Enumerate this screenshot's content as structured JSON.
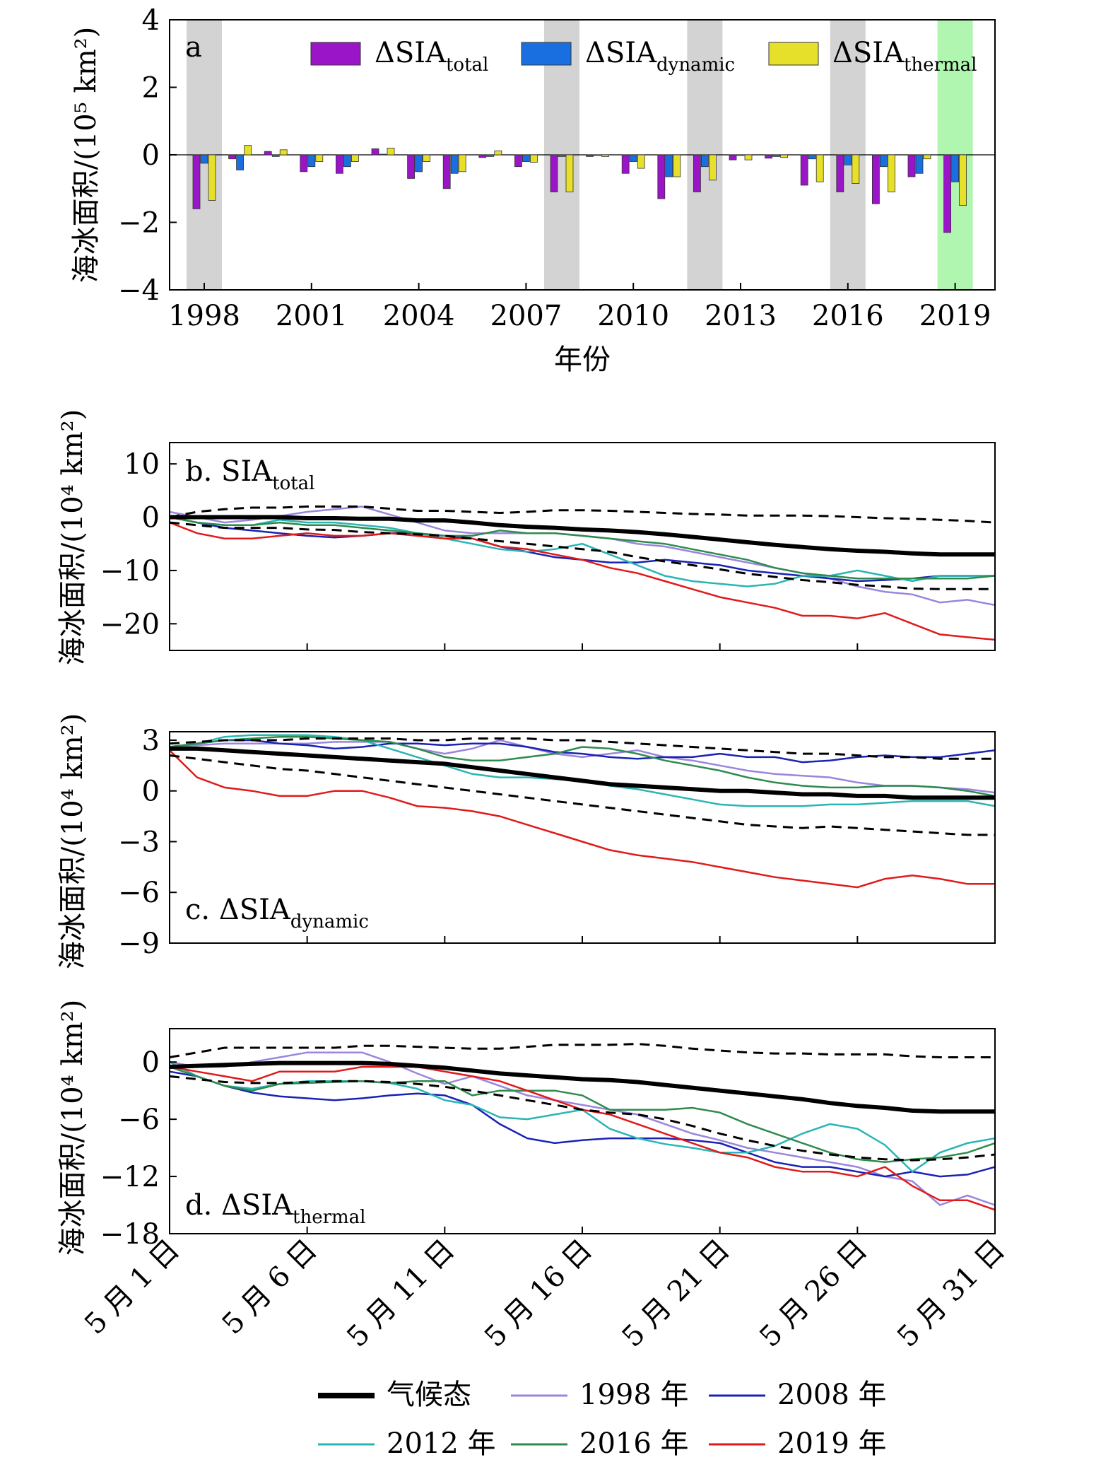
{
  "chart_data": [
    {
      "panel": "a",
      "type": "bar",
      "panel_label": "a",
      "ylabel": "海冰面积/(10⁵ km²)",
      "xlabel": "年份",
      "ylim": [
        -4,
        4
      ],
      "yticks": [
        "−4",
        "−2",
        "0",
        "2",
        "4"
      ],
      "x": [
        1998,
        1999,
        2000,
        2001,
        2002,
        2003,
        2004,
        2005,
        2006,
        2007,
        2008,
        2009,
        2010,
        2011,
        2012,
        2013,
        2014,
        2015,
        2016,
        2017,
        2018,
        2019
      ],
      "xticks": [
        "1998",
        "2001",
        "2004",
        "2007",
        "2010",
        "2013",
        "2016",
        "2019"
      ],
      "highlight_years": [
        1998,
        2008,
        2012,
        2016
      ],
      "highlight_color": "#d3d3d3",
      "special_year": 2019,
      "special_color": "#b0f5b0",
      "series": [
        {
          "name": "ΔSIA",
          "sub": "total",
          "color": "#9a14c8",
          "values": [
            -1.6,
            -0.12,
            0.1,
            -0.5,
            -0.55,
            0.18,
            -0.7,
            -1.0,
            -0.08,
            -0.35,
            -1.1,
            -0.05,
            -0.55,
            -1.3,
            -1.1,
            -0.15,
            -0.1,
            -0.9,
            -1.1,
            -1.45,
            -0.65,
            -2.3
          ]
        },
        {
          "name": "ΔSIA",
          "sub": "dynamic",
          "color": "#1a6fe0",
          "values": [
            -0.25,
            -0.45,
            -0.05,
            -0.35,
            -0.35,
            0.02,
            -0.5,
            -0.55,
            -0.05,
            -0.2,
            -0.05,
            -0.02,
            -0.2,
            -0.65,
            -0.35,
            -0.02,
            -0.05,
            -0.12,
            -0.3,
            -0.35,
            -0.55,
            -0.8
          ]
        },
        {
          "name": "ΔSIA",
          "sub": "thermal",
          "color": "#e6e02a",
          "values": [
            -1.35,
            0.28,
            0.15,
            -0.2,
            -0.2,
            0.2,
            -0.2,
            -0.5,
            0.12,
            -0.22,
            -1.1,
            -0.05,
            -0.4,
            -0.65,
            -0.75,
            -0.15,
            -0.08,
            -0.8,
            -0.85,
            -1.1,
            -0.12,
            -1.5
          ]
        }
      ]
    },
    {
      "panel": "b",
      "type": "line",
      "panel_label": "b. SIA",
      "panel_sub": "total",
      "ylabel": "海冰面积/(10⁴ km²)",
      "ylim": [
        -25,
        14
      ],
      "yticks": [
        {
          "v": 10,
          "t": "10"
        },
        {
          "v": 0,
          "t": "0"
        },
        {
          "v": -10,
          "t": "−10"
        },
        {
          "v": -20,
          "t": "−20"
        }
      ],
      "series": {
        "clim": [
          0,
          0,
          0,
          0,
          0,
          -0.2,
          -0.2,
          -0.3,
          -0.3,
          -0.6,
          -0.6,
          -1,
          -1.5,
          -1.8,
          -2,
          -2.3,
          -2.5,
          -2.8,
          -3.2,
          -3.7,
          -4.2,
          -4.7,
          -5.2,
          -5.6,
          -6,
          -6.3,
          -6.5,
          -6.8,
          -7,
          -7,
          -7
        ],
        "upper": [
          0,
          1,
          1.5,
          1.8,
          1.8,
          2,
          2,
          2,
          1.6,
          1.2,
          1.2,
          1,
          0.8,
          1,
          1.3,
          1.3,
          1.2,
          1,
          0.8,
          0.6,
          0.5,
          0.3,
          0.3,
          0.3,
          0.2,
          0,
          -0.2,
          -0.3,
          -0.5,
          -0.7,
          -1
        ],
        "lower": [
          -1,
          -1.5,
          -2,
          -2,
          -2,
          -2.3,
          -2.4,
          -2.8,
          -3,
          -3.2,
          -3.5,
          -4,
          -4.5,
          -5,
          -5.5,
          -6,
          -6.5,
          -7.5,
          -8.3,
          -9,
          -9.8,
          -10.6,
          -11.2,
          -11.8,
          -12.2,
          -12.7,
          -13,
          -13.4,
          -13.5,
          -13.5,
          -13.5
        ],
        "y1998": [
          1,
          0,
          -1,
          -0.5,
          0.2,
          1,
          1.5,
          2,
          0.5,
          -1,
          -2.5,
          -3,
          -3,
          -3,
          -3,
          -3.5,
          -4,
          -5,
          -5.5,
          -6.5,
          -7.5,
          -8.5,
          -9.5,
          -10.5,
          -11.5,
          -13,
          -14,
          -14.5,
          -16,
          -15.5,
          -16.5
        ],
        "y2008": [
          0,
          -1,
          -2,
          -2.5,
          -3,
          -3.5,
          -3.8,
          -3.5,
          -3,
          -3,
          -3.5,
          -4,
          -5.5,
          -6.5,
          -7.5,
          -8,
          -8.5,
          -8.5,
          -8,
          -8.5,
          -9,
          -10,
          -10.5,
          -11,
          -11.5,
          -12,
          -11.8,
          -11.5,
          -11,
          -11,
          -11
        ],
        "y2012": [
          0,
          -1,
          -1.5,
          -1.5,
          -0.5,
          -1,
          -1,
          -1.5,
          -2,
          -3,
          -4,
          -5,
          -6,
          -6.5,
          -6,
          -5,
          -7,
          -9,
          -11,
          -12,
          -12.5,
          -13,
          -12.5,
          -11,
          -11,
          -10,
          -11,
          -12,
          -11,
          -11,
          -11
        ],
        "y2016": [
          0,
          -1,
          -1.5,
          -1.5,
          -1,
          -1.5,
          -1.5,
          -2,
          -2.5,
          -3,
          -3.5,
          -3.5,
          -2.5,
          -3,
          -3,
          -3.5,
          -4,
          -4.5,
          -5,
          -6,
          -7,
          -8,
          -9.5,
          -10.5,
          -11,
          -11.5,
          -11.5,
          -11.5,
          -11.5,
          -11.5,
          -11
        ],
        "y2019": [
          -1,
          -3,
          -4,
          -4,
          -3.5,
          -3,
          -3.5,
          -3.5,
          -3,
          -3.5,
          -4,
          -4,
          -5.5,
          -6,
          -7,
          -8,
          -9.5,
          -10.5,
          -12,
          -13.5,
          -15,
          -16,
          -17,
          -18.5,
          -18.5,
          -19,
          -18,
          -20,
          -22,
          -22.5,
          -23
        ]
      }
    },
    {
      "panel": "c",
      "type": "line",
      "panel_label": "c. ΔSIA",
      "panel_sub": "dynamic",
      "ylabel": "海冰面积/(10⁴ km²)",
      "ylim": [
        -9,
        3.5
      ],
      "yticks": [
        {
          "v": 3,
          "t": "3"
        },
        {
          "v": 0,
          "t": "0"
        },
        {
          "v": -3,
          "t": "−3"
        },
        {
          "v": -6,
          "t": "−6"
        },
        {
          "v": -9,
          "t": "−9"
        }
      ],
      "series": {
        "clim": [
          2.5,
          2.5,
          2.4,
          2.3,
          2.2,
          2.1,
          2,
          1.9,
          1.8,
          1.7,
          1.6,
          1.4,
          1.2,
          1,
          0.8,
          0.6,
          0.4,
          0.3,
          0.2,
          0.1,
          0,
          0,
          -0.1,
          -0.2,
          -0.2,
          -0.3,
          -0.3,
          -0.4,
          -0.4,
          -0.4,
          -0.4
        ],
        "upper": [
          2.8,
          2.9,
          3,
          3,
          3,
          3.1,
          3.1,
          3.1,
          3.1,
          3,
          3,
          3.1,
          3.1,
          3.1,
          3,
          3,
          2.9,
          2.8,
          2.7,
          2.6,
          2.5,
          2.4,
          2.3,
          2.2,
          2.2,
          2.1,
          2,
          2,
          1.9,
          1.9,
          1.9
        ],
        "lower": [
          2.1,
          1.9,
          1.7,
          1.5,
          1.3,
          1.2,
          1,
          0.8,
          0.6,
          0.4,
          0.2,
          0,
          -0.2,
          -0.4,
          -0.6,
          -0.8,
          -1,
          -1.2,
          -1.4,
          -1.6,
          -1.8,
          -2,
          -2.1,
          -2.2,
          -2.1,
          -2.2,
          -2.3,
          -2.4,
          -2.5,
          -2.6,
          -2.6
        ],
        "y1998": [
          2.6,
          2.7,
          2.8,
          2.8,
          2.8,
          2.8,
          2.9,
          2.9,
          2.9,
          2.5,
          2.2,
          2.5,
          3,
          2.6,
          2.2,
          2,
          2.2,
          2.4,
          2,
          1.8,
          1.5,
          1.2,
          1,
          0.9,
          0.8,
          0.5,
          0.3,
          0.3,
          0.2,
          0.1,
          -0.1
        ],
        "y2008": [
          2.6,
          2.8,
          3,
          3,
          2.8,
          2.7,
          2.5,
          2.6,
          2.8,
          2.8,
          2.7,
          2.8,
          2.8,
          2.6,
          2.3,
          2.2,
          2,
          1.9,
          2,
          2,
          2.2,
          2,
          2,
          1.7,
          1.8,
          2,
          2.1,
          2,
          2,
          2.2,
          2.4
        ],
        "y2012": [
          2.5,
          2.8,
          3.2,
          3.3,
          3.3,
          3.3,
          3.2,
          3,
          2.5,
          2,
          1.5,
          1,
          0.8,
          0.8,
          0.7,
          0.6,
          0.3,
          0.1,
          -0.2,
          -0.5,
          -0.8,
          -0.9,
          -0.9,
          -0.9,
          -0.8,
          -0.8,
          -0.7,
          -0.6,
          -0.6,
          -0.6,
          -0.9
        ],
        "y2016": [
          2.6,
          2.8,
          3,
          3.1,
          3.2,
          3.2,
          3.1,
          3,
          2.9,
          2.5,
          2,
          1.8,
          1.8,
          2,
          2.2,
          2.6,
          2.5,
          2.2,
          1.8,
          1.5,
          1.2,
          0.8,
          0.5,
          0.3,
          0.2,
          0.2,
          0.3,
          0.3,
          0.2,
          0,
          -0.3
        ],
        "y2019": [
          2.4,
          0.8,
          0.2,
          0,
          -0.3,
          -0.3,
          0,
          0,
          -0.4,
          -0.9,
          -1,
          -1.2,
          -1.5,
          -2,
          -2.5,
          -3,
          -3.5,
          -3.8,
          -4,
          -4.2,
          -4.5,
          -4.8,
          -5.1,
          -5.3,
          -5.5,
          -5.7,
          -5.2,
          -5,
          -5.2,
          -5.5,
          -5.5
        ]
      }
    },
    {
      "panel": "d",
      "type": "line",
      "panel_label": "d. ΔSIA",
      "panel_sub": "thermal",
      "ylabel": "海冰面积/(10⁴ km²)",
      "ylim": [
        -18,
        3.5
      ],
      "yticks": [
        {
          "v": 0,
          "t": "0"
        },
        {
          "v": -6,
          "t": "−6"
        },
        {
          "v": -12,
          "t": "−12"
        },
        {
          "v": -18,
          "t": "−18"
        }
      ],
      "xticks": [
        "5 月 1 日",
        "5 月 6 日",
        "5 月 11 日",
        "5 月 16 日",
        "5 月 21 日",
        "5 月 26 日",
        "5 月 31 日"
      ],
      "series": {
        "clim": [
          -0.5,
          -0.4,
          -0.3,
          -0.2,
          -0.1,
          -0.1,
          -0.1,
          -0.1,
          -0.2,
          -0.4,
          -0.6,
          -0.9,
          -1.2,
          -1.4,
          -1.6,
          -1.8,
          -1.9,
          -2.1,
          -2.4,
          -2.7,
          -3,
          -3.3,
          -3.6,
          -3.9,
          -4.3,
          -4.6,
          -4.8,
          -5.1,
          -5.2,
          -5.2,
          -5.2
        ],
        "upper": [
          0.5,
          1,
          1.5,
          1.5,
          1.5,
          1.5,
          1.5,
          1.7,
          1.7,
          1.6,
          1.5,
          1.4,
          1.4,
          1.6,
          1.8,
          1.8,
          1.8,
          1.9,
          1.7,
          1.4,
          1.2,
          1,
          0.9,
          0.9,
          0.8,
          0.8,
          0.8,
          0.6,
          0.5,
          0.5,
          0.5
        ],
        "lower": [
          -1.5,
          -1.8,
          -2.1,
          -2.2,
          -2.2,
          -2.1,
          -2,
          -2,
          -2.1,
          -2.3,
          -2.6,
          -3,
          -3.5,
          -4,
          -4.5,
          -5,
          -5.3,
          -5.5,
          -6,
          -6.7,
          -7.5,
          -8.2,
          -8.8,
          -9.3,
          -9.7,
          -10,
          -10.2,
          -10.3,
          -10.2,
          -10,
          -9.7
        ],
        "y1998": [
          0,
          -0.5,
          -0.5,
          0,
          0.5,
          1,
          1,
          1,
          0,
          -1.2,
          -2.3,
          -1.5,
          -2.5,
          -3.5,
          -4,
          -4.5,
          -5,
          -5.5,
          -6.5,
          -7.5,
          -8.2,
          -9,
          -9.5,
          -10,
          -10.5,
          -11,
          -12,
          -12.5,
          -15,
          -14,
          -15
        ],
        "y2008": [
          -1,
          -1.5,
          -2.5,
          -3.2,
          -3.6,
          -3.8,
          -4,
          -3.8,
          -3.5,
          -3.3,
          -3.5,
          -4.5,
          -6.5,
          -8,
          -8.5,
          -8.2,
          -8,
          -8,
          -8,
          -8.2,
          -8.5,
          -9.5,
          -10.5,
          -11,
          -11,
          -11.5,
          -12,
          -11.5,
          -12,
          -11.8,
          -11
        ],
        "y2012": [
          0,
          -1.5,
          -2.5,
          -2.8,
          -2.3,
          -2,
          -2,
          -2,
          -2.2,
          -2.8,
          -4,
          -4.5,
          -5.8,
          -6,
          -5.5,
          -5,
          -7,
          -8,
          -8.6,
          -9,
          -9.5,
          -9.5,
          -8.8,
          -7.5,
          -6.5,
          -7,
          -8.7,
          -11.5,
          -9.5,
          -8.5,
          -8
        ],
        "y2016": [
          -0.5,
          -1.5,
          -2.5,
          -3,
          -2.3,
          -2.2,
          -2.1,
          -2,
          -2.2,
          -2,
          -2,
          -3.5,
          -3,
          -3,
          -3,
          -3.5,
          -5,
          -5,
          -5,
          -4.8,
          -5.3,
          -6.5,
          -7.5,
          -8.5,
          -9.5,
          -10.2,
          -10.5,
          -10.2,
          -10,
          -9.5,
          -8.5
        ],
        "y2019": [
          -0.5,
          -1,
          -1.5,
          -2,
          -1,
          -1,
          -1,
          -0.5,
          -0.5,
          -0.5,
          -1,
          -1.5,
          -2,
          -3,
          -4,
          -5,
          -5.5,
          -6.5,
          -7.5,
          -8.5,
          -9.5,
          -10,
          -11,
          -11.5,
          -11.5,
          -12,
          -11,
          -13,
          -14.5,
          -14.5,
          -15.5
        ]
      }
    }
  ],
  "legend": [
    {
      "key": "clim",
      "label": "气候态",
      "color": "#000000",
      "width": 6
    },
    {
      "key": "y1998",
      "label": "1998 年",
      "color": "#9b85dd",
      "width": 2.5
    },
    {
      "key": "y2008",
      "label": "2008 年",
      "color": "#1a22b4",
      "width": 2.5
    },
    {
      "key": "y2012",
      "label": "2012 年",
      "color": "#2ab5b5",
      "width": 2.5
    },
    {
      "key": "y2016",
      "label": "2016 年",
      "color": "#2e8b4e",
      "width": 2.5
    },
    {
      "key": "y2019",
      "label": "2019 年",
      "color": "#e01a1a",
      "width": 2.5
    }
  ]
}
